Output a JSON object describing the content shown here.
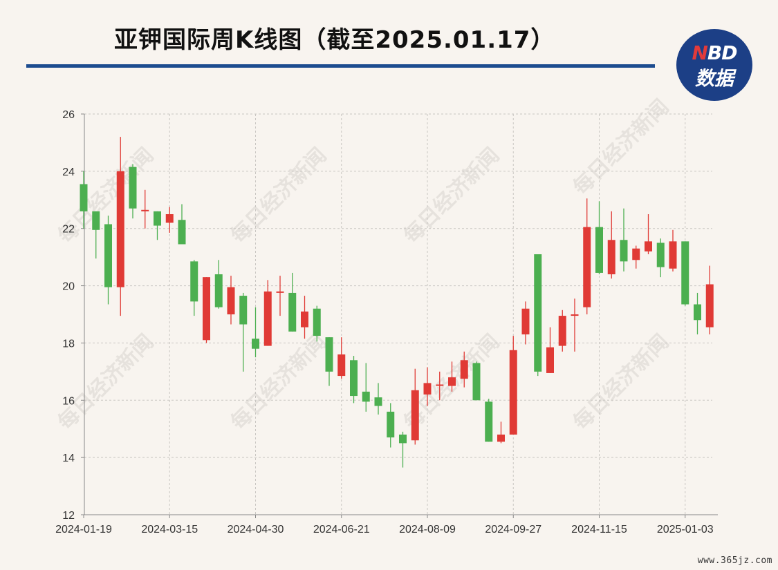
{
  "header": {
    "title": "亚钾国际周K线图（截至2025.01.17）",
    "logo_top": "NBD",
    "logo_bottom": "数据"
  },
  "watermark": {
    "repeated_text": "每日经济新闻",
    "site": "www.365jz.com"
  },
  "colors": {
    "up": "#e03a35",
    "down": "#4caf50",
    "title_rule": "#1d4c8f",
    "logo_bg": "#1c3f86"
  },
  "chart_data": {
    "type": "candlestick",
    "title": "亚钾国际周K线图（截至2025.01.17）",
    "ylim": [
      12,
      26
    ],
    "yticks": [
      12,
      14,
      16,
      18,
      20,
      22,
      24,
      26
    ],
    "x_tick_labels": [
      "2024-01-19",
      "2024-03-15",
      "2024-04-30",
      "2024-06-21",
      "2024-08-09",
      "2024-09-27",
      "2024-11-15",
      "2025-01-03"
    ],
    "x_tick_candle_index": [
      0,
      7,
      14,
      21,
      28,
      35,
      42,
      49
    ],
    "grid": true,
    "candles": [
      {
        "o": 23.55,
        "c": 22.6,
        "h": 24.0,
        "l": 22.0
      },
      {
        "o": 22.6,
        "c": 21.95,
        "h": 22.6,
        "l": 20.95
      },
      {
        "o": 22.15,
        "c": 19.95,
        "h": 22.45,
        "l": 19.35
      },
      {
        "o": 19.95,
        "c": 24.0,
        "h": 25.2,
        "l": 18.95
      },
      {
        "o": 24.15,
        "c": 22.7,
        "h": 24.25,
        "l": 22.35
      },
      {
        "o": 22.6,
        "c": 22.65,
        "h": 23.35,
        "l": 22.0
      },
      {
        "o": 22.6,
        "c": 22.1,
        "h": 22.6,
        "l": 21.6
      },
      {
        "o": 22.2,
        "c": 22.5,
        "h": 22.75,
        "l": 21.85
      },
      {
        "o": 22.3,
        "c": 21.45,
        "h": 22.85,
        "l": 21.45
      },
      {
        "o": 20.85,
        "c": 19.45,
        "h": 20.9,
        "l": 18.95
      },
      {
        "o": 18.1,
        "c": 20.3,
        "h": 20.3,
        "l": 18.0
      },
      {
        "o": 20.4,
        "c": 19.25,
        "h": 20.9,
        "l": 19.2
      },
      {
        "o": 19.0,
        "c": 19.95,
        "h": 20.35,
        "l": 18.65
      },
      {
        "o": 19.65,
        "c": 18.65,
        "h": 19.75,
        "l": 17.0
      },
      {
        "o": 18.15,
        "c": 17.8,
        "h": 19.25,
        "l": 17.5
      },
      {
        "o": 17.9,
        "c": 19.8,
        "h": 20.2,
        "l": 17.9
      },
      {
        "o": 19.8,
        "c": 19.8,
        "h": 20.35,
        "l": 18.95
      },
      {
        "o": 19.75,
        "c": 18.4,
        "h": 20.45,
        "l": 18.4
      },
      {
        "o": 18.55,
        "c": 19.1,
        "h": 19.65,
        "l": 18.15
      },
      {
        "o": 19.2,
        "c": 18.25,
        "h": 19.3,
        "l": 18.05
      },
      {
        "o": 18.2,
        "c": 17.0,
        "h": 18.2,
        "l": 16.5
      },
      {
        "o": 16.85,
        "c": 17.6,
        "h": 18.2,
        "l": 16.75
      },
      {
        "o": 17.4,
        "c": 16.15,
        "h": 17.55,
        "l": 15.9
      },
      {
        "o": 16.3,
        "c": 15.95,
        "h": 17.3,
        "l": 15.6
      },
      {
        "o": 16.1,
        "c": 15.8,
        "h": 16.6,
        "l": 15.5
      },
      {
        "o": 15.6,
        "c": 14.7,
        "h": 15.9,
        "l": 14.35
      },
      {
        "o": 14.8,
        "c": 14.5,
        "h": 14.9,
        "l": 13.65
      },
      {
        "o": 14.6,
        "c": 16.35,
        "h": 17.1,
        "l": 14.45
      },
      {
        "o": 16.2,
        "c": 16.6,
        "h": 17.15,
        "l": 15.8
      },
      {
        "o": 16.55,
        "c": 16.55,
        "h": 17.0,
        "l": 16.0
      },
      {
        "o": 16.5,
        "c": 16.8,
        "h": 17.35,
        "l": 16.3
      },
      {
        "o": 16.75,
        "c": 17.4,
        "h": 17.7,
        "l": 16.45
      },
      {
        "o": 17.3,
        "c": 16.0,
        "h": 17.35,
        "l": 16.0
      },
      {
        "o": 15.95,
        "c": 14.55,
        "h": 16.05,
        "l": 14.55
      },
      {
        "o": 14.55,
        "c": 14.8,
        "h": 15.25,
        "l": 14.5
      },
      {
        "o": 14.8,
        "c": 17.75,
        "h": 18.25,
        "l": 14.8
      },
      {
        "o": 18.3,
        "c": 19.2,
        "h": 19.45,
        "l": 17.95
      },
      {
        "o": 21.1,
        "c": 17.0,
        "h": 21.1,
        "l": 16.85
      },
      {
        "o": 16.95,
        "c": 17.85,
        "h": 18.55,
        "l": 16.95
      },
      {
        "o": 17.9,
        "c": 18.95,
        "h": 19.15,
        "l": 17.7
      },
      {
        "o": 18.95,
        "c": 19.0,
        "h": 19.55,
        "l": 17.7
      },
      {
        "o": 19.25,
        "c": 22.05,
        "h": 23.05,
        "l": 19.0
      },
      {
        "o": 22.05,
        "c": 20.45,
        "h": 22.95,
        "l": 20.4
      },
      {
        "o": 20.4,
        "c": 21.6,
        "h": 22.6,
        "l": 20.25
      },
      {
        "o": 21.6,
        "c": 20.85,
        "h": 22.7,
        "l": 20.5
      },
      {
        "o": 20.9,
        "c": 21.3,
        "h": 21.4,
        "l": 20.6
      },
      {
        "o": 21.2,
        "c": 21.55,
        "h": 22.5,
        "l": 21.1
      },
      {
        "o": 21.5,
        "c": 20.65,
        "h": 21.65,
        "l": 20.3
      },
      {
        "o": 20.6,
        "c": 21.55,
        "h": 21.95,
        "l": 20.5
      },
      {
        "o": 21.55,
        "c": 19.35,
        "h": 21.55,
        "l": 19.3
      },
      {
        "o": 19.35,
        "c": 18.8,
        "h": 19.75,
        "l": 18.3
      },
      {
        "o": 18.55,
        "c": 20.05,
        "h": 20.7,
        "l": 18.3
      }
    ]
  }
}
